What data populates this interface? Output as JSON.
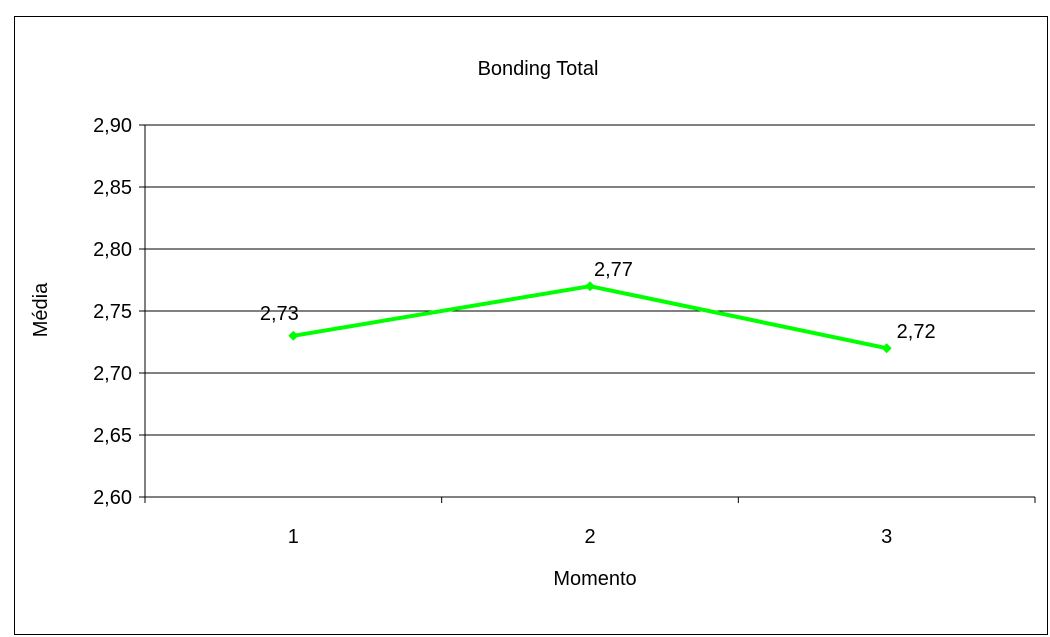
{
  "chart_data": {
    "type": "line",
    "title": "Bonding Total",
    "xlabel": "Momento",
    "ylabel": "Média",
    "categories": [
      "1",
      "2",
      "3"
    ],
    "series": [
      {
        "values": [
          2.73,
          2.77,
          2.72
        ],
        "labels": [
          "2,73",
          "2,77",
          "2,72"
        ],
        "color": "#00ff00"
      }
    ],
    "ylim": [
      2.6,
      2.9
    ],
    "yticks": [
      2.6,
      2.65,
      2.7,
      2.75,
      2.8,
      2.85,
      2.9
    ],
    "ytick_labels": [
      "2,60",
      "2,65",
      "2,70",
      "2,75",
      "2,80",
      "2,85",
      "2,90"
    ],
    "grid": "horizontal",
    "legend": "none"
  }
}
